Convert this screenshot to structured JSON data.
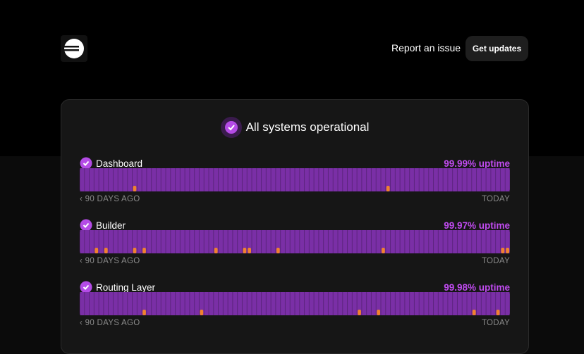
{
  "header": {
    "nav": [
      "Report an issue"
    ],
    "button": "Get updates"
  },
  "status": {
    "title": "All systems operational"
  },
  "components": [
    {
      "name": "Dashboard",
      "uptime": "99.99% uptime",
      "start_label": "90 DAYS AGO",
      "end_label": "TODAY",
      "incident_days": [
        11,
        64
      ]
    },
    {
      "name": "Builder",
      "uptime": "99.97% uptime",
      "start_label": "90 DAYS AGO",
      "end_label": "TODAY",
      "incident_days": [
        3,
        5,
        11,
        13,
        28,
        34,
        35,
        41,
        63,
        88,
        89
      ]
    },
    {
      "name": "Routing Layer",
      "uptime": "99.98% uptime",
      "start_label": "90 DAYS AGO",
      "end_label": "TODAY",
      "incident_days": [
        13,
        25,
        58,
        62,
        82,
        87
      ]
    }
  ]
}
